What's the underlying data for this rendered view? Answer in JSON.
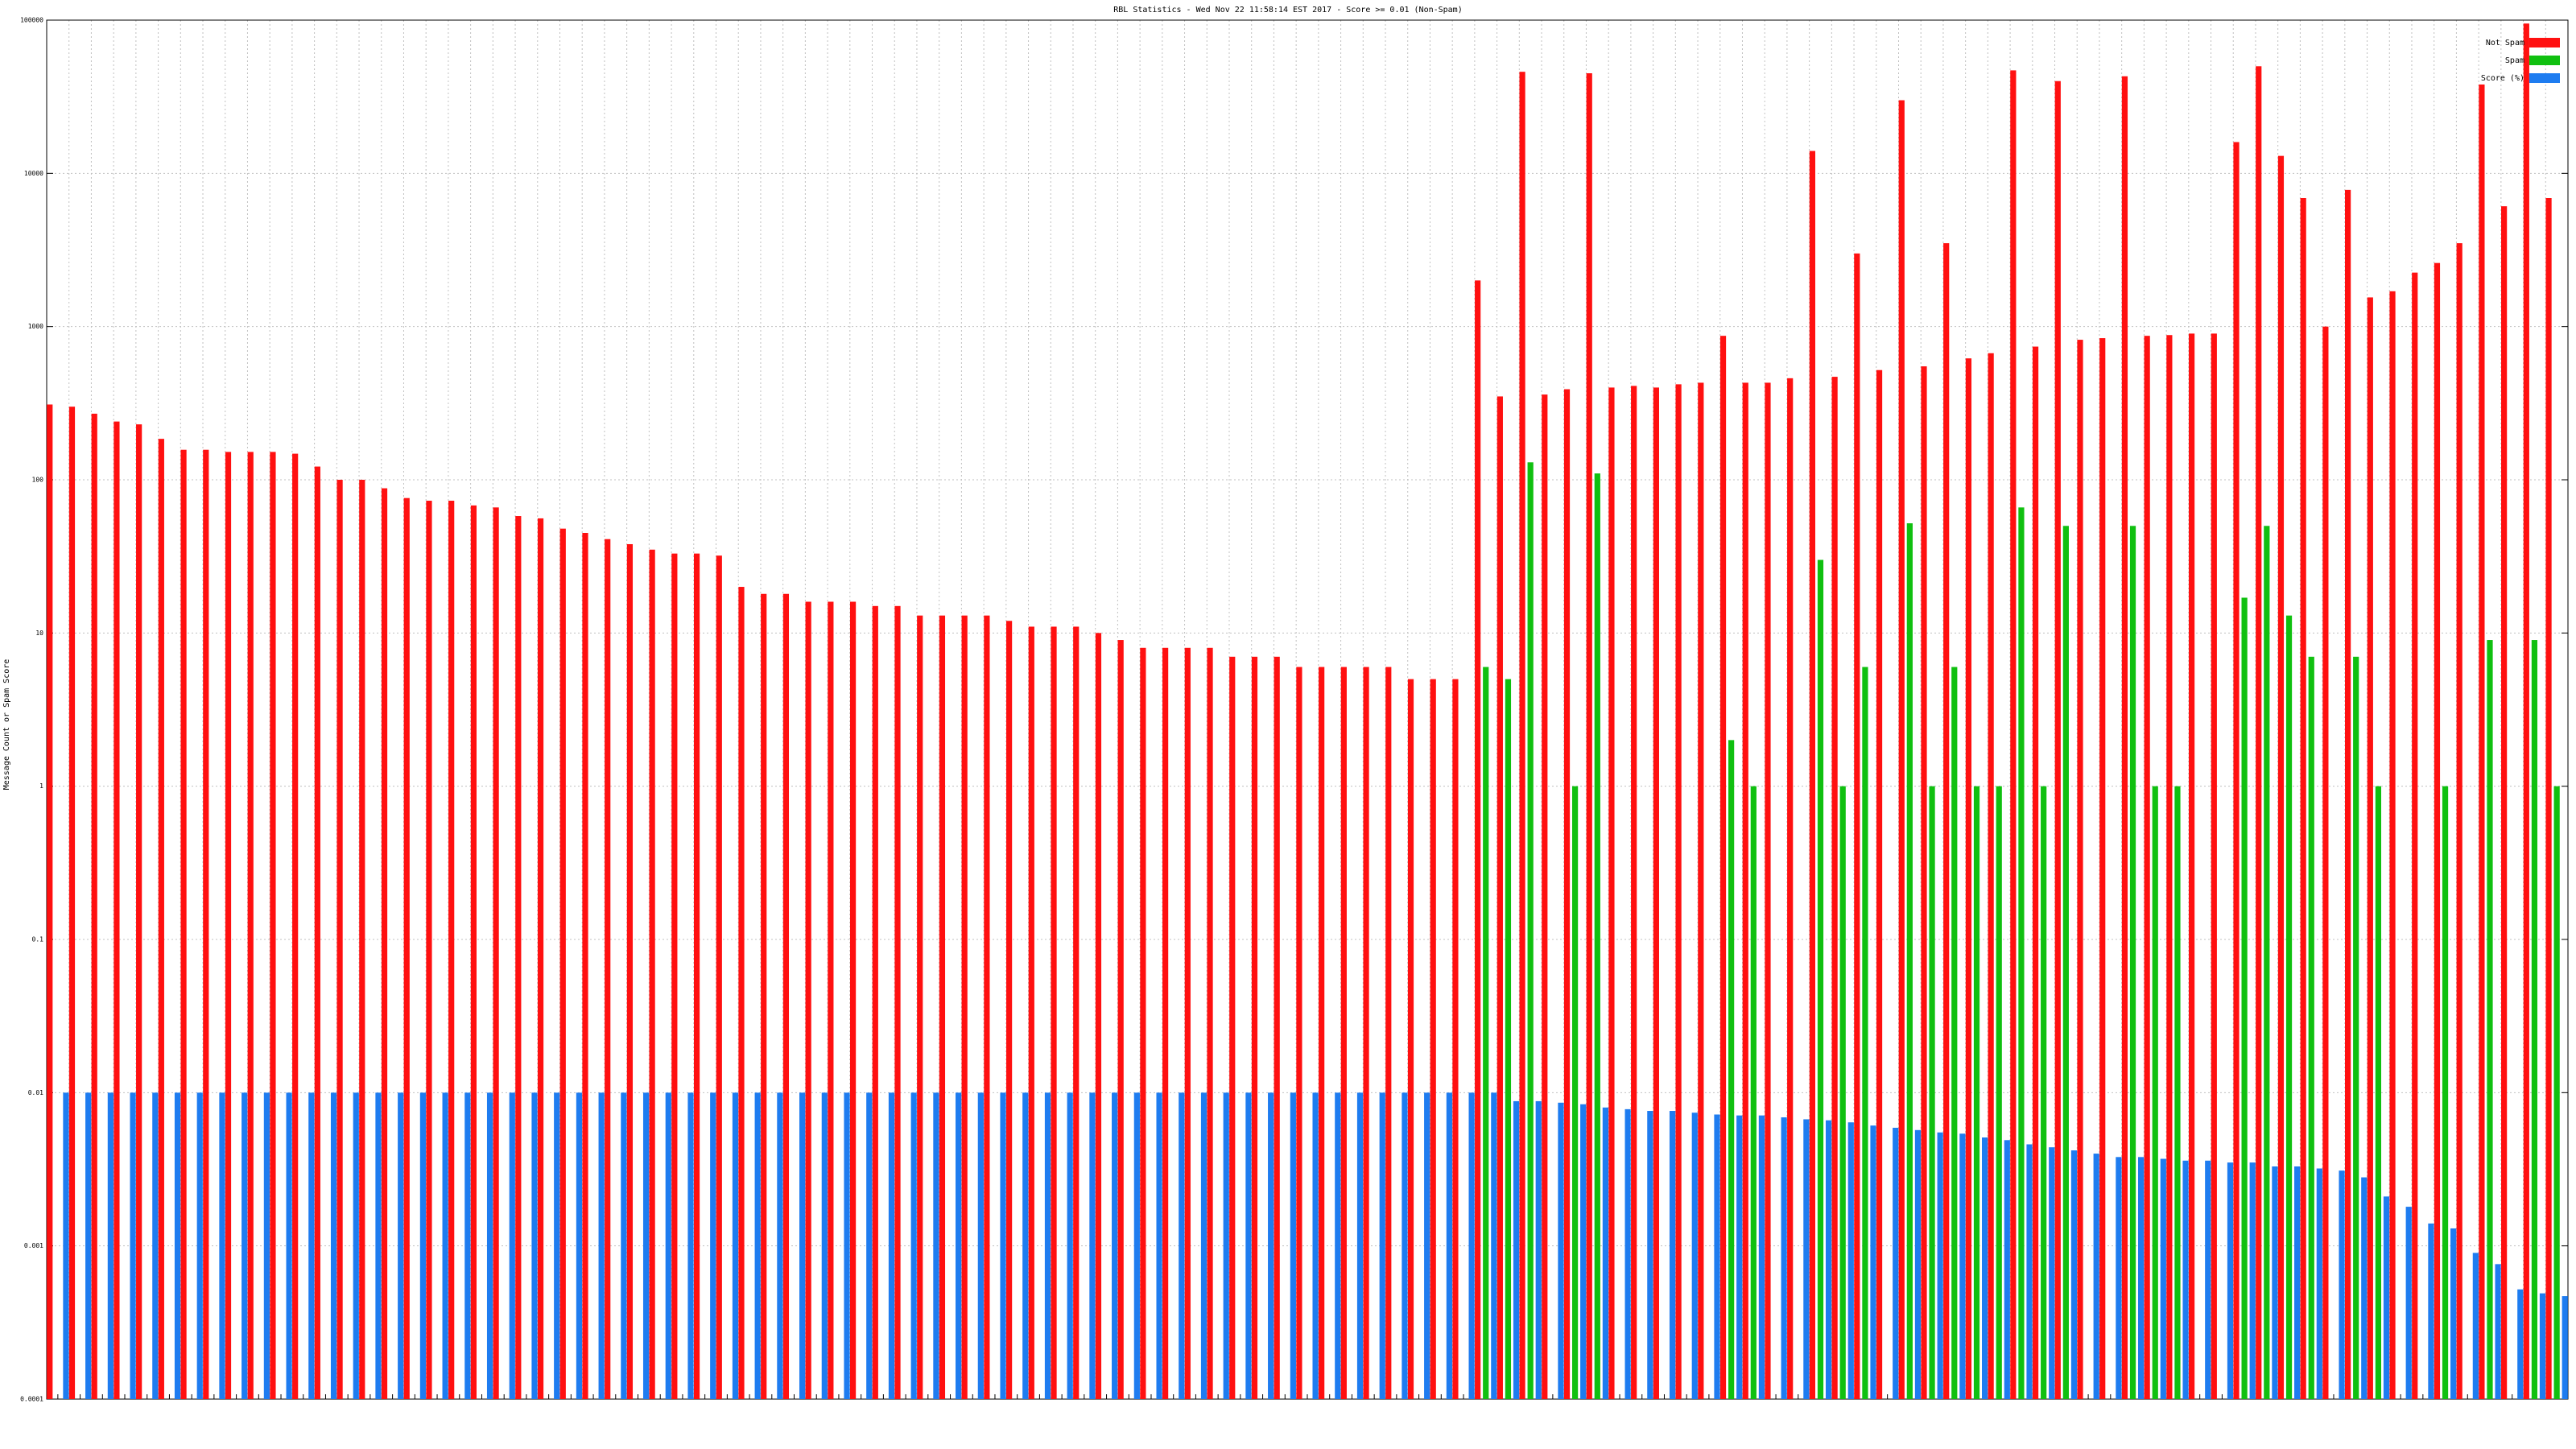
{
  "chart_data": {
    "type": "bar",
    "title": "RBL Statistics - Wed Nov 22 11:58:14 EST 2017 - Score >= 0.01 (Non-Spam)",
    "y_label": "Message Count or Spam Score",
    "log_scale": true,
    "grid": true,
    "legend": "top-right",
    "ylim": [
      0.0001,
      100000
    ],
    "yticks": [
      0.0001,
      0.001,
      0.01,
      0.1,
      1,
      10,
      100,
      1000,
      10000,
      100000
    ],
    "categories": [
      null,
      null,
      null,
      null,
      null,
      null,
      null,
      null,
      null,
      null,
      null,
      null,
      null,
      null,
      null,
      null,
      null,
      null,
      null,
      null,
      null,
      null,
      null,
      null,
      null,
      null,
      null,
      null,
      null,
      null,
      null,
      null,
      null,
      null,
      null,
      null,
      null,
      null,
      null,
      null,
      null,
      null,
      null,
      null,
      null,
      null,
      null,
      null,
      null,
      null,
      null,
      null,
      null,
      null,
      null,
      null,
      null,
      null,
      null,
      null,
      null,
      null,
      null,
      null,
      null,
      null,
      null,
      null,
      null,
      null,
      null,
      null,
      null,
      null,
      null,
      null,
      null,
      null,
      null,
      null,
      null,
      null,
      null,
      null,
      null,
      null,
      null,
      null,
      null,
      null,
      null,
      null,
      null,
      null,
      null,
      null,
      null,
      null,
      null,
      null,
      null,
      null,
      null,
      null,
      null,
      null,
      null,
      null,
      null,
      null,
      null,
      null,
      null
    ],
    "series": [
      {
        "name": "Not Spam",
        "color": "#ff1010",
        "values": [
          310,
          300,
          270,
          240,
          230,
          185,
          157,
          157,
          152,
          152,
          152,
          148,
          122,
          100,
          100,
          88,
          76,
          73,
          73,
          68,
          66,
          58,
          56,
          48,
          45,
          41,
          38,
          35,
          33,
          33,
          32,
          20,
          18,
          18,
          16,
          16,
          16,
          15,
          15,
          13,
          13,
          13,
          13,
          12,
          11,
          11,
          11,
          10,
          9,
          8,
          8,
          8,
          8,
          7,
          7,
          7,
          6,
          6,
          6,
          6,
          6,
          5,
          5,
          5,
          2000,
          350,
          46000,
          360,
          390,
          45000,
          400,
          410,
          400,
          420,
          430,
          870,
          430,
          430,
          460,
          14000,
          470,
          3000,
          520,
          30000,
          550,
          3500,
          620,
          670,
          47000,
          740,
          40000,
          820,
          840,
          43000,
          870,
          880,
          900,
          900,
          16000,
          50000,
          13000,
          6900,
          1000,
          7800,
          1550,
          1700,
          2250,
          2600,
          3500,
          38000,
          6100,
          95000,
          6900
        ]
      },
      {
        "name": "Spam",
        "color": "#10c010",
        "values": [
          null,
          null,
          null,
          null,
          null,
          null,
          null,
          null,
          null,
          null,
          null,
          null,
          null,
          null,
          null,
          null,
          null,
          null,
          null,
          null,
          null,
          null,
          null,
          null,
          null,
          null,
          null,
          null,
          null,
          null,
          null,
          null,
          null,
          null,
          null,
          null,
          null,
          null,
          null,
          null,
          null,
          null,
          null,
          null,
          null,
          null,
          null,
          null,
          null,
          null,
          null,
          null,
          null,
          null,
          null,
          null,
          null,
          null,
          null,
          null,
          null,
          null,
          null,
          null,
          6,
          5,
          130,
          null,
          1,
          110,
          null,
          null,
          null,
          null,
          null,
          2,
          1,
          null,
          null,
          30,
          1,
          6,
          null,
          52,
          1,
          6,
          1,
          1,
          66,
          1,
          50,
          null,
          null,
          50,
          1,
          1,
          null,
          null,
          17,
          50,
          13,
          7,
          null,
          7,
          1,
          null,
          null,
          1,
          null,
          9,
          null,
          9,
          1
        ]
      },
      {
        "name": "Score (%)",
        "color": "#1e7cf0",
        "values": [
          0.01,
          0.01,
          0.01,
          0.01,
          0.01,
          0.01,
          0.01,
          0.01,
          0.01,
          0.01,
          0.01,
          0.01,
          0.01,
          0.01,
          0.01,
          0.01,
          0.01,
          0.01,
          0.01,
          0.01,
          0.01,
          0.01,
          0.01,
          0.01,
          0.01,
          0.01,
          0.01,
          0.01,
          0.01,
          0.01,
          0.01,
          0.01,
          0.01,
          0.01,
          0.01,
          0.01,
          0.01,
          0.01,
          0.01,
          0.01,
          0.01,
          0.01,
          0.01,
          0.01,
          0.01,
          0.01,
          0.01,
          0.01,
          0.01,
          0.01,
          0.01,
          0.01,
          0.01,
          0.01,
          0.01,
          0.01,
          0.01,
          0.01,
          0.01,
          0.01,
          0.01,
          0.01,
          0.01,
          0.01,
          0.01,
          0.0088,
          0.0088,
          0.0086,
          0.0084,
          0.008,
          0.0078,
          0.0076,
          0.0076,
          0.0074,
          0.0072,
          0.0071,
          0.0071,
          0.0069,
          0.0067,
          0.0066,
          0.0064,
          0.0061,
          0.0059,
          0.0057,
          0.0055,
          0.0054,
          0.0051,
          0.0049,
          0.0046,
          0.0044,
          0.0042,
          0.004,
          0.0038,
          0.0038,
          0.0037,
          0.0036,
          0.0036,
          0.0035,
          0.0035,
          0.0033,
          0.0033,
          0.0032,
          0.0031,
          0.0028,
          0.0021,
          0.0018,
          0.0014,
          0.0013,
          0.0009,
          0.00076,
          0.00052,
          0.00049,
          0.00047
        ]
      }
    ]
  }
}
